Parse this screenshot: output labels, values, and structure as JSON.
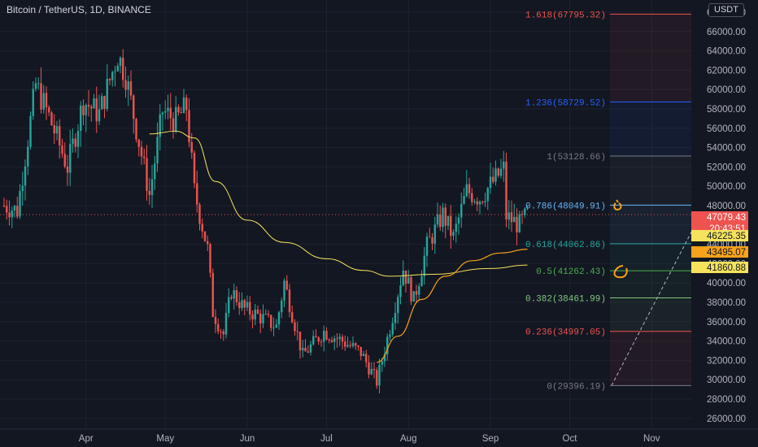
{
  "header": {
    "symbol_title": "Bitcoin / TetherUS, 1D, BINANCE",
    "currency_button": "USDT"
  },
  "colors": {
    "background": "#131722",
    "up": "#26a69a",
    "down": "#ef5350",
    "ma_fast": "#f7a21b",
    "ma_slow": "#f5e35c",
    "grid": "#1e222d",
    "axis_text": "#b2b5be"
  },
  "price_axis": {
    "ticks": [
      "68000.00",
      "66000.00",
      "64000.00",
      "62000.00",
      "60000.00",
      "58000.00",
      "56000.00",
      "54000.00",
      "52000.00",
      "50000.00",
      "48000.00",
      "46000.00",
      "44000.00",
      "42000.00",
      "40000.00",
      "38000.00",
      "36000.00",
      "34000.00",
      "32000.00",
      "30000.00",
      "28000.00",
      "26000.00"
    ]
  },
  "time_axis": {
    "labels": [
      "Apr",
      "May",
      "Jun",
      "Jul",
      "Aug",
      "Sep",
      "Oct",
      "Nov"
    ]
  },
  "price_labels": [
    {
      "text": "47079.43",
      "bg": "#ef5350",
      "fg": "#ffffff",
      "value": 47079.43
    },
    {
      "text": "20:43:51",
      "bg": "#ef5350",
      "fg": "#ffffff",
      "value": 45650
    },
    {
      "text": "46225.35",
      "bg": "#f5e35c",
      "fg": "#131722",
      "value": 46225.35
    },
    {
      "text": "43495.07",
      "bg": "#f7a21b",
      "fg": "#131722",
      "value": 43495.07
    },
    {
      "text": "41860.88",
      "bg": "#f5e35c",
      "fg": "#131722",
      "value": 41860.88
    }
  ],
  "fib_levels": [
    {
      "label": "1.618(67795.32)",
      "color": "#ef5350",
      "value": 67795.32
    },
    {
      "label": "1.236(58729.52)",
      "color": "#2962ff",
      "value": 58729.52
    },
    {
      "label": "1(53128.66)",
      "color": "#787b86",
      "value": 53128.66
    },
    {
      "label": "0.786(48049.91)",
      "color": "#64b5f6",
      "value": 48049.91
    },
    {
      "label": "0.618(44062.86)",
      "color": "#26a69a",
      "value": 44062.86
    },
    {
      "label": "0.5(41262.43)",
      "color": "#4caf50",
      "value": 41262.43
    },
    {
      "label": "0.382(38461.99)",
      "color": "#81c784",
      "value": 38461.99
    },
    {
      "label": "0.236(34997.05)",
      "color": "#ef5350",
      "value": 34997.05
    },
    {
      "label": "0(29396.19)",
      "color": "#787b86",
      "value": 29396.19
    }
  ],
  "chart_data": {
    "type": "candlestick",
    "title": "Bitcoin / TetherUS, 1D, BINANCE",
    "x_range": [
      "2021-03-01",
      "2021-11-20"
    ],
    "ylim": [
      25000,
      69500
    ],
    "current_price": 47079.43,
    "ma_fast_last": 43495.07,
    "ma_slow_last": 41860.88,
    "anchors": [
      [
        "2021-03-01",
        48000
      ],
      [
        "2021-03-06",
        47500
      ],
      [
        "2021-03-13",
        60500
      ],
      [
        "2021-03-18",
        57200
      ],
      [
        "2021-03-25",
        52000
      ],
      [
        "2021-03-31",
        58800
      ],
      [
        "2021-04-06",
        57500
      ],
      [
        "2021-04-13",
        63600
      ],
      [
        "2021-04-16",
        61500
      ],
      [
        "2021-04-20",
        56000
      ],
      [
        "2021-04-25",
        49100
      ],
      [
        "2021-04-30",
        57800
      ],
      [
        "2021-05-05",
        56800
      ],
      [
        "2021-05-09",
        58200
      ],
      [
        "2021-05-12",
        49500
      ],
      [
        "2021-05-17",
        43500
      ],
      [
        "2021-05-19",
        37000
      ],
      [
        "2021-05-23",
        34700
      ],
      [
        "2021-05-26",
        39200
      ],
      [
        "2021-05-31",
        37300
      ],
      [
        "2021-06-04",
        36800
      ],
      [
        "2021-06-12",
        35500
      ],
      [
        "2021-06-15",
        40100
      ],
      [
        "2021-06-22",
        32500
      ],
      [
        "2021-06-30",
        35000
      ],
      [
        "2021-07-07",
        34000
      ],
      [
        "2021-07-14",
        32800
      ],
      [
        "2021-07-20",
        29800
      ],
      [
        "2021-07-25",
        35400
      ],
      [
        "2021-07-30",
        41500
      ],
      [
        "2021-08-03",
        38200
      ],
      [
        "2021-08-08",
        43800
      ],
      [
        "2021-08-14",
        47100
      ],
      [
        "2021-08-18",
        44700
      ],
      [
        "2021-08-23",
        49500
      ],
      [
        "2021-08-28",
        48800
      ],
      [
        "2021-09-06",
        51800
      ],
      [
        "2021-09-07",
        46900
      ],
      [
        "2021-09-12",
        46000
      ],
      [
        "2021-09-15",
        47079
      ]
    ],
    "ma50_anchors": [
      [
        "2021-07-20",
        31800
      ],
      [
        "2021-07-28",
        34500
      ],
      [
        "2021-08-06",
        38300
      ],
      [
        "2021-08-15",
        40700
      ],
      [
        "2021-08-25",
        42300
      ],
      [
        "2021-09-05",
        43100
      ],
      [
        "2021-09-15",
        43495
      ]
    ],
    "ma200_anchors": [
      [
        "2021-04-25",
        55400
      ],
      [
        "2021-05-05",
        55700
      ],
      [
        "2021-05-12",
        55000
      ],
      [
        "2021-05-20",
        50500
      ],
      [
        "2021-06-01",
        46500
      ],
      [
        "2021-06-15",
        44200
      ],
      [
        "2021-07-01",
        42500
      ],
      [
        "2021-07-15",
        41300
      ],
      [
        "2021-07-25",
        40700
      ],
      [
        "2021-08-10",
        40900
      ],
      [
        "2021-09-01",
        41500
      ],
      [
        "2021-09-15",
        41860
      ]
    ]
  }
}
